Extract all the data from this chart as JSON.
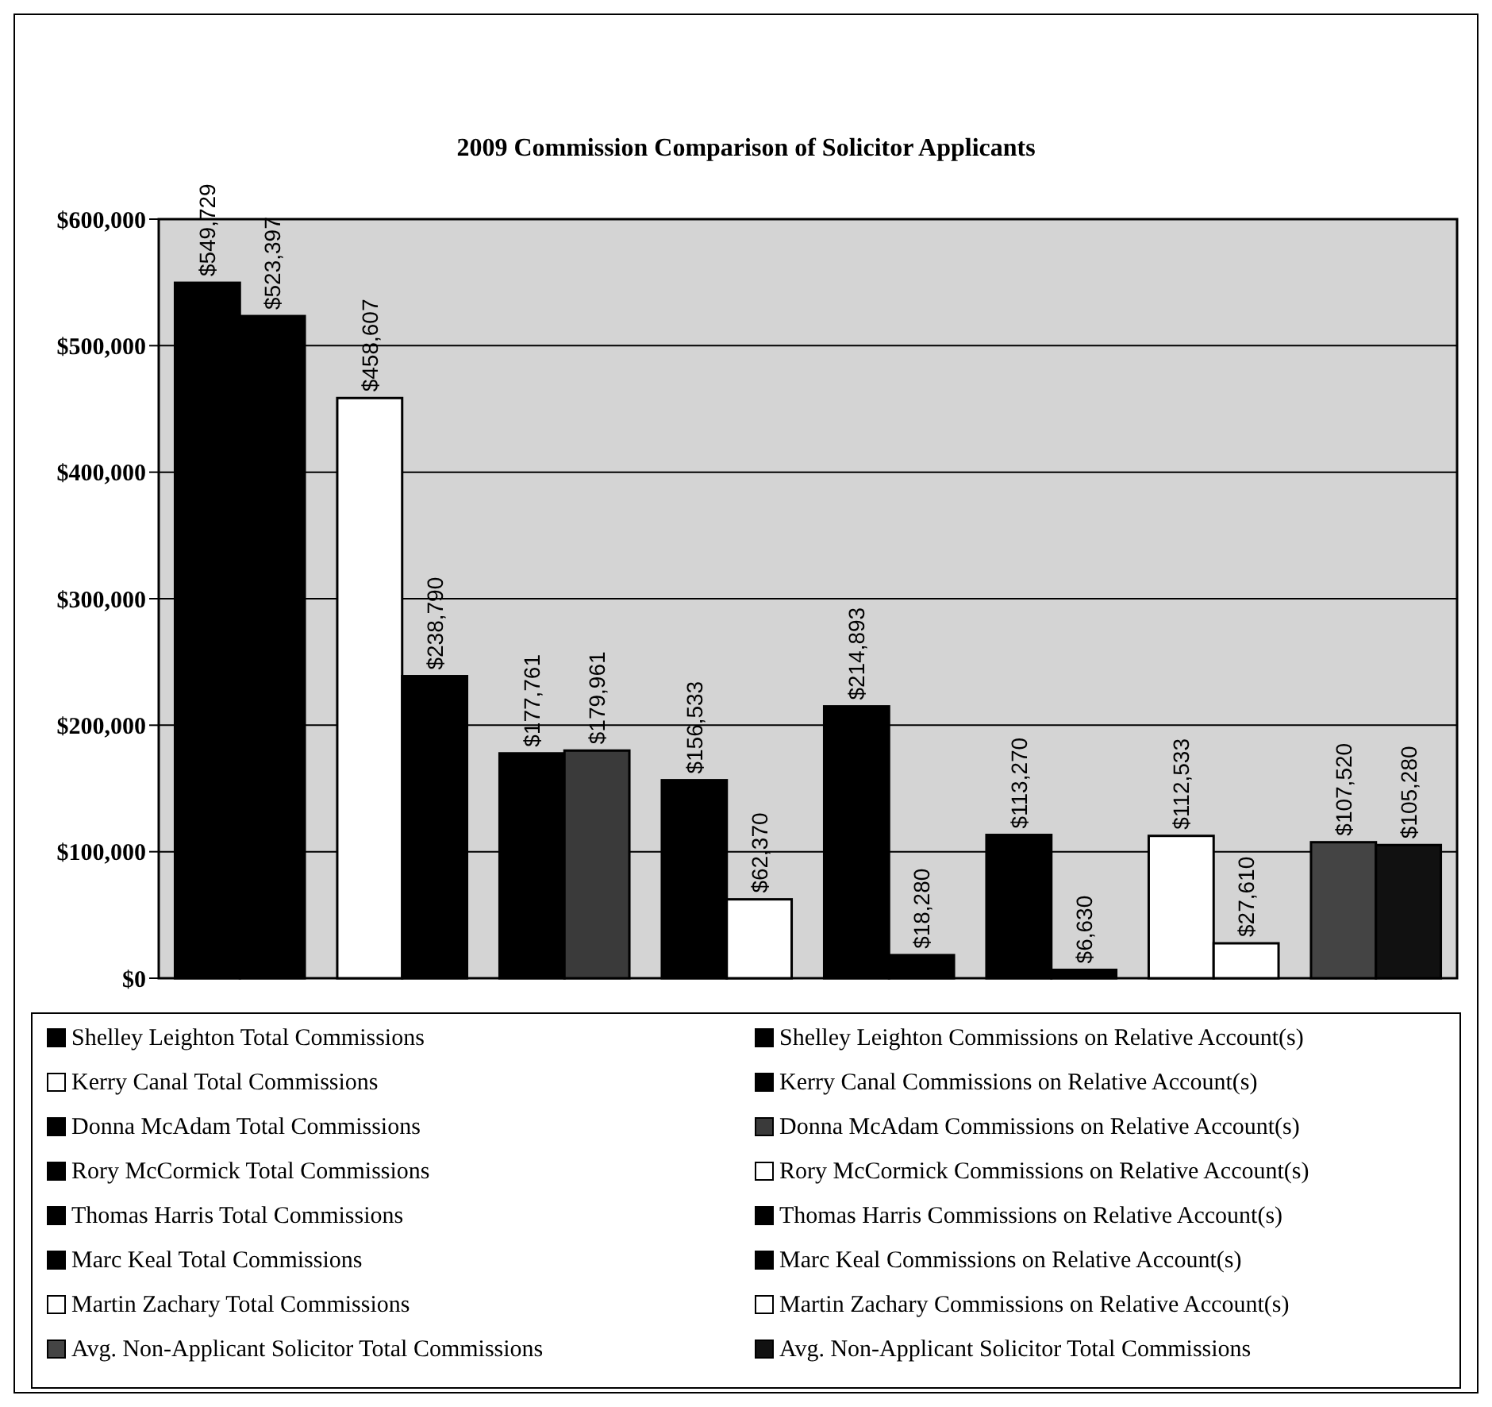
{
  "chart_data": {
    "type": "bar",
    "title": "2009 Commission Comparison of Solicitor Applicants",
    "categories": [
      null,
      null,
      null,
      null,
      null,
      null,
      null,
      null
    ],
    "ylim": [
      0,
      600000
    ],
    "yticks": [
      {
        "value": 0,
        "label": "$0"
      },
      {
        "value": 100000,
        "label": "$100,000"
      },
      {
        "value": 200000,
        "label": "$200,000"
      },
      {
        "value": 300000,
        "label": "$300,000"
      },
      {
        "value": 400000,
        "label": "$400,000"
      },
      {
        "value": 500000,
        "label": "$500,000"
      },
      {
        "value": 600000,
        "label": "$600,000"
      }
    ],
    "grid": "y",
    "legend": "bottom",
    "series": [
      {
        "name": "Shelley Leighton Total Commissions",
        "color": "#000000",
        "values": [
          549729,
          null,
          null,
          null,
          null,
          null,
          null,
          null
        ],
        "value_labels": [
          "$549,729",
          null,
          null,
          null,
          null,
          null,
          null,
          null
        ]
      },
      {
        "name": "Shelley Leighton Commissions on Relative Account(s)",
        "color": "#000000",
        "values": [
          523397,
          null,
          null,
          null,
          null,
          null,
          null,
          null
        ],
        "value_labels": [
          "$523,397",
          null,
          null,
          null,
          null,
          null,
          null,
          null
        ]
      },
      {
        "name": "Kerry Canal Total Commissions",
        "color": "#ffffff",
        "values": [
          null,
          458607,
          null,
          null,
          null,
          null,
          null,
          null
        ],
        "value_labels": [
          null,
          "$458,607",
          null,
          null,
          null,
          null,
          null,
          null
        ]
      },
      {
        "name": "Kerry Canal Commissions on Relative Account(s)",
        "color": "#000000",
        "values": [
          null,
          238790,
          null,
          null,
          null,
          null,
          null,
          null
        ],
        "value_labels": [
          null,
          "$238,790",
          null,
          null,
          null,
          null,
          null,
          null
        ]
      },
      {
        "name": "Donna McAdam Total Commissions",
        "color": "#000000",
        "values": [
          null,
          null,
          177761,
          null,
          null,
          null,
          null,
          null
        ],
        "value_labels": [
          null,
          null,
          "$177,761",
          null,
          null,
          null,
          null,
          null
        ]
      },
      {
        "name": "Donna McAdam Commissions on Relative Account(s)",
        "color": "#3a3a3a",
        "values": [
          null,
          null,
          179961,
          null,
          null,
          null,
          null,
          null
        ],
        "value_labels": [
          null,
          null,
          "$179,961",
          null,
          null,
          null,
          null,
          null
        ]
      },
      {
        "name": "Rory McCormick Total Commissions",
        "color": "#000000",
        "values": [
          null,
          null,
          null,
          156533,
          null,
          null,
          null,
          null
        ],
        "value_labels": [
          null,
          null,
          null,
          "$156,533",
          null,
          null,
          null,
          null
        ]
      },
      {
        "name": "Rory McCormick Commissions on Relative Account(s)",
        "color": "#ffffff",
        "values": [
          null,
          null,
          null,
          62370,
          null,
          null,
          null,
          null
        ],
        "value_labels": [
          null,
          null,
          null,
          "$62,370",
          null,
          null,
          null,
          null
        ]
      },
      {
        "name": "Thomas Harris Total Commissions",
        "color": "#000000",
        "values": [
          null,
          null,
          null,
          null,
          214893,
          null,
          null,
          null
        ],
        "value_labels": [
          null,
          null,
          null,
          null,
          "$214,893",
          null,
          null,
          null
        ]
      },
      {
        "name": "Thomas Harris Commissions on Relative Account(s)",
        "color": "#000000",
        "values": [
          null,
          null,
          null,
          null,
          18280,
          null,
          null,
          null
        ],
        "value_labels": [
          null,
          null,
          null,
          null,
          "$18,280",
          null,
          null,
          null
        ]
      },
      {
        "name": "Marc Keal Total Commissions",
        "color": "#000000",
        "values": [
          null,
          null,
          null,
          null,
          null,
          113270,
          null,
          null
        ],
        "value_labels": [
          null,
          null,
          null,
          null,
          null,
          "$113,270",
          null,
          null
        ]
      },
      {
        "name": "Marc Keal Commissions on Relative Account(s)",
        "color": "#000000",
        "values": [
          null,
          null,
          null,
          null,
          null,
          6630,
          null,
          null
        ],
        "value_labels": [
          null,
          null,
          null,
          null,
          null,
          "$6,630",
          null,
          null
        ]
      },
      {
        "name": "Martin Zachary Total Commissions",
        "color": "#ffffff",
        "values": [
          null,
          null,
          null,
          null,
          null,
          null,
          112533,
          null
        ],
        "value_labels": [
          null,
          null,
          null,
          null,
          null,
          null,
          "$112,533",
          null
        ]
      },
      {
        "name": "Martin Zachary Commissions on Relative Account(s)",
        "color": "#ffffff",
        "values": [
          null,
          null,
          null,
          null,
          null,
          null,
          27610,
          null
        ],
        "value_labels": [
          null,
          null,
          null,
          null,
          null,
          null,
          "$27,610",
          null
        ]
      },
      {
        "name": "Avg. Non-Applicant Solicitor Total Commissions",
        "color": "#444444",
        "values": [
          null,
          null,
          null,
          null,
          null,
          null,
          null,
          107520
        ],
        "value_labels": [
          null,
          null,
          null,
          null,
          null,
          null,
          null,
          "$107,520"
        ]
      },
      {
        "name": "Avg. Non-Applicant Solicitor Total Commissions",
        "color": "#111111",
        "values": [
          null,
          null,
          null,
          null,
          null,
          null,
          null,
          105280
        ],
        "value_labels": [
          null,
          null,
          null,
          null,
          null,
          null,
          null,
          "$105,280"
        ]
      }
    ]
  }
}
